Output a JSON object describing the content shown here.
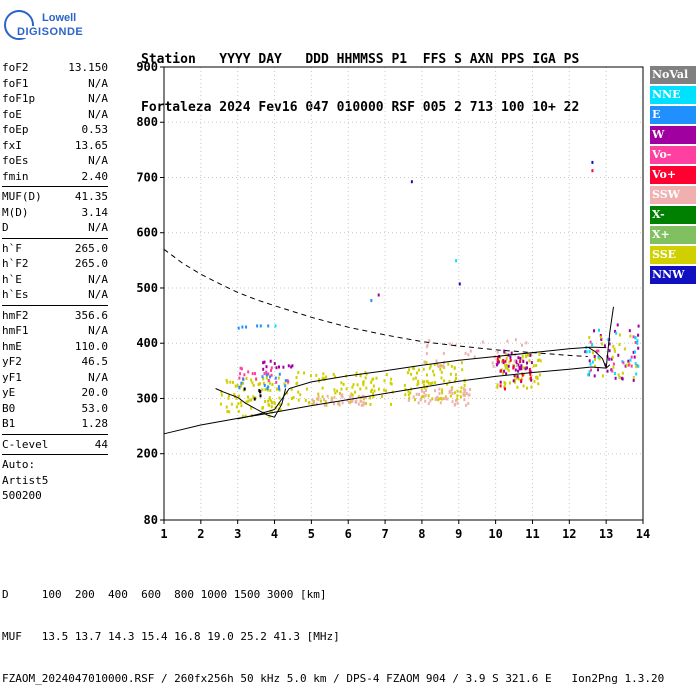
{
  "logo": {
    "line1": "Lowell",
    "line2": "DIGISONDE"
  },
  "header": {
    "row1": "Station   YYYY DAY   DDD HHMMSS P1  FFS S AXN PPS IGA PS",
    "row2": "Fortaleza 2024 Fev16 047 010000 RSF 005 2 713 100 10+ 22"
  },
  "params": {
    "group1": [
      {
        "k": "foF2",
        "v": "13.150"
      },
      {
        "k": "foF1",
        "v": "N/A"
      },
      {
        "k": "foF1p",
        "v": "N/A"
      },
      {
        "k": "foE",
        "v": "N/A"
      },
      {
        "k": "foEp",
        "v": "0.53"
      },
      {
        "k": "fxI",
        "v": "13.65"
      },
      {
        "k": "foEs",
        "v": "N/A"
      },
      {
        "k": "fmin",
        "v": "2.40"
      }
    ],
    "group2": [
      {
        "k": "MUF(D)",
        "v": "41.35"
      },
      {
        "k": "M(D)",
        "v": "3.14"
      },
      {
        "k": "D",
        "v": "N/A"
      }
    ],
    "group3": [
      {
        "k": "h`F",
        "v": "265.0"
      },
      {
        "k": "h`F2",
        "v": "265.0"
      },
      {
        "k": "h`E",
        "v": "N/A"
      },
      {
        "k": "h`Es",
        "v": "N/A"
      }
    ],
    "group4": [
      {
        "k": "hmF2",
        "v": "356.6"
      },
      {
        "k": "hmF1",
        "v": "N/A"
      },
      {
        "k": "hmE",
        "v": "110.0"
      },
      {
        "k": "yF2",
        "v": "46.5"
      },
      {
        "k": "yF1",
        "v": "N/A"
      },
      {
        "k": "yE",
        "v": "20.0"
      },
      {
        "k": "B0",
        "v": "53.0"
      },
      {
        "k": "B1",
        "v": "1.28"
      }
    ],
    "clevel": {
      "k": "C-level",
      "v": "44"
    },
    "auto": [
      "Auto:",
      "Artist5",
      "500200"
    ]
  },
  "legend": [
    {
      "label": "NoVal",
      "color": "#808080"
    },
    {
      "label": "NNE",
      "color": "#00e0ff"
    },
    {
      "label": "E",
      "color": "#2090ff"
    },
    {
      "label": "W",
      "color": "#a000a0"
    },
    {
      "label": "Vo-",
      "color": "#ff40a0"
    },
    {
      "label": "Vo+",
      "color": "#ff0030"
    },
    {
      "label": "SSW",
      "color": "#f0b0b0"
    },
    {
      "label": "X-",
      "color": "#008000"
    },
    {
      "label": "X+",
      "color": "#80c060"
    },
    {
      "label": "SSE",
      "color": "#d0d000"
    },
    {
      "label": "NNW",
      "color": "#1010c0"
    }
  ],
  "chart_data": {
    "type": "scatter",
    "title": "",
    "xlabel": "",
    "ylabel": "",
    "xlim": [
      1,
      14
    ],
    "ylim": [
      80,
      900
    ],
    "x_ticks": [
      1,
      2,
      3,
      4,
      5,
      6,
      7,
      8,
      9,
      10,
      11,
      12,
      13,
      14
    ],
    "y_ticks": [
      80,
      200,
      300,
      400,
      500,
      600,
      700,
      800,
      900
    ],
    "grid": true,
    "series": [
      {
        "name": "dashed-profile",
        "style": "dashed",
        "x": [
          1.0,
          1.5,
          2.0,
          2.5,
          3.0,
          3.5,
          4.0,
          5.0,
          6.0,
          7.0,
          8.0,
          9.0,
          10.0,
          11.0,
          12.0,
          12.5
        ],
        "y": [
          570,
          545,
          525,
          508,
          492,
          479,
          468,
          447,
          429,
          415,
          403,
          395,
          388,
          383,
          378,
          376
        ]
      },
      {
        "name": "lower-trace",
        "style": "solid",
        "x": [
          1.0,
          2.0,
          3.0,
          4.0,
          5.0,
          6.0,
          7.0,
          8.0,
          9.0,
          10.0,
          11.0,
          12.0,
          12.6,
          13.0,
          13.1
        ],
        "y": [
          236,
          252,
          264,
          275,
          287,
          298,
          309,
          320,
          331,
          340,
          347,
          353,
          357,
          355,
          361
        ]
      },
      {
        "name": "upper-trace",
        "style": "solid",
        "x": [
          3.0,
          3.6,
          4.0,
          4.4,
          5.0,
          6.0,
          7.0,
          8.0,
          9.0,
          10.0,
          11.0,
          12.0,
          12.6,
          13.0
        ],
        "y": [
          263,
          272,
          280,
          318,
          330,
          341,
          350,
          360,
          369,
          376,
          383,
          390,
          393,
          392
        ]
      },
      {
        "name": "cusp-left",
        "style": "solid",
        "x": [
          2.4,
          2.6,
          3.0,
          3.2,
          3.5,
          3.8,
          4.0,
          4.2,
          4.3
        ],
        "y": [
          318,
          312,
          302,
          292,
          281,
          270,
          266,
          290,
          318
        ]
      },
      {
        "name": "cusp-right",
        "style": "solid",
        "x": [
          12.5,
          12.7,
          12.9,
          13.0,
          13.1,
          13.2
        ],
        "y": [
          393,
          385,
          372,
          355,
          420,
          466
        ]
      }
    ],
    "echo_clusters": [
      {
        "x": [
          2.5,
          4.5
        ],
        "y": [
          270,
          340
        ],
        "color": "#d0d000",
        "n": 90
      },
      {
        "x": [
          4.5,
          7.2
        ],
        "y": [
          290,
          350
        ],
        "color": "#d0d000",
        "n": 90
      },
      {
        "x": [
          7.5,
          9.2
        ],
        "y": [
          300,
          370
        ],
        "color": "#d0d000",
        "n": 90
      },
      {
        "x": [
          7.6,
          9.3
        ],
        "y": [
          290,
          320
        ],
        "color": "#f0b0b0",
        "n": 50
      },
      {
        "x": [
          5.0,
          6.5
        ],
        "y": [
          290,
          310
        ],
        "color": "#f0b0b0",
        "n": 40
      },
      {
        "x": [
          3.0,
          4.5
        ],
        "y": [
          330,
          360
        ],
        "color": "#ff40a0",
        "n": 20
      },
      {
        "x": [
          3.0,
          4.5
        ],
        "y": [
          320,
          350
        ],
        "color": "#2090ff",
        "n": 16
      },
      {
        "x": [
          3.6,
          4.5
        ],
        "y": [
          355,
          372
        ],
        "color": "#a000a0",
        "n": 12
      },
      {
        "x": [
          10.0,
          11.2
        ],
        "y": [
          320,
          385
        ],
        "color": "#d0d000",
        "n": 60
      },
      {
        "x": [
          10.0,
          11.0
        ],
        "y": [
          330,
          390
        ],
        "color": "#a000a0",
        "n": 40
      },
      {
        "x": [
          10.0,
          11.0
        ],
        "y": [
          320,
          380
        ],
        "color": "#ff0030",
        "n": 16
      },
      {
        "x": [
          12.4,
          13.9
        ],
        "y": [
          330,
          440
        ],
        "color": "#a000a0",
        "n": 36
      },
      {
        "x": [
          12.4,
          13.9
        ],
        "y": [
          340,
          430
        ],
        "color": "#00e0ff",
        "n": 24
      },
      {
        "x": [
          12.4,
          13.9
        ],
        "y": [
          340,
          420
        ],
        "color": "#d0d000",
        "n": 24
      },
      {
        "x": [
          12.5,
          13.9
        ],
        "y": [
          350,
          420
        ],
        "color": "#ff40a0",
        "n": 12
      },
      {
        "x": [
          8.0,
          11.0
        ],
        "y": [
          360,
          410
        ],
        "color": "#f0b0b0",
        "n": 30
      },
      {
        "x": [
          3.0,
          3.6
        ],
        "y": [
          300,
          320
        ],
        "color": "#000000",
        "n": 6
      }
    ],
    "isolated_echoes": [
      {
        "x": 3.0,
        "y": 430,
        "color": "#2090ff"
      },
      {
        "x": 3.1,
        "y": 432,
        "color": "#2090ff"
      },
      {
        "x": 3.2,
        "y": 432,
        "color": "#2090ff"
      },
      {
        "x": 3.5,
        "y": 434,
        "color": "#2090ff"
      },
      {
        "x": 3.6,
        "y": 434,
        "color": "#2090ff"
      },
      {
        "x": 3.8,
        "y": 434,
        "color": "#2090ff"
      },
      {
        "x": 4.0,
        "y": 434,
        "color": "#00e0ff"
      },
      {
        "x": 6.6,
        "y": 480,
        "color": "#2090ff"
      },
      {
        "x": 6.8,
        "y": 490,
        "color": "#a000a0"
      },
      {
        "x": 7.7,
        "y": 695,
        "color": "#1010c0"
      },
      {
        "x": 8.9,
        "y": 552,
        "color": "#00e0ff"
      },
      {
        "x": 9.0,
        "y": 510,
        "color": "#1010c0"
      },
      {
        "x": 12.6,
        "y": 730,
        "color": "#1010c0"
      },
      {
        "x": 12.6,
        "y": 715,
        "color": "#ff0030"
      }
    ]
  },
  "bottom": {
    "line1": "D     100  200  400  600  800 1000 1500 3000 [km]",
    "line2": "MUF   13.5 13.7 14.3 15.4 16.8 19.0 25.2 41.3 [MHz]",
    "line3": "FZAOM_2024047010000.RSF / 260fx256h 50 kHz 5.0 km / DPS-4 FZAOM 904 / 3.9 S 321.6 E   Ion2Png 1.3.20"
  }
}
